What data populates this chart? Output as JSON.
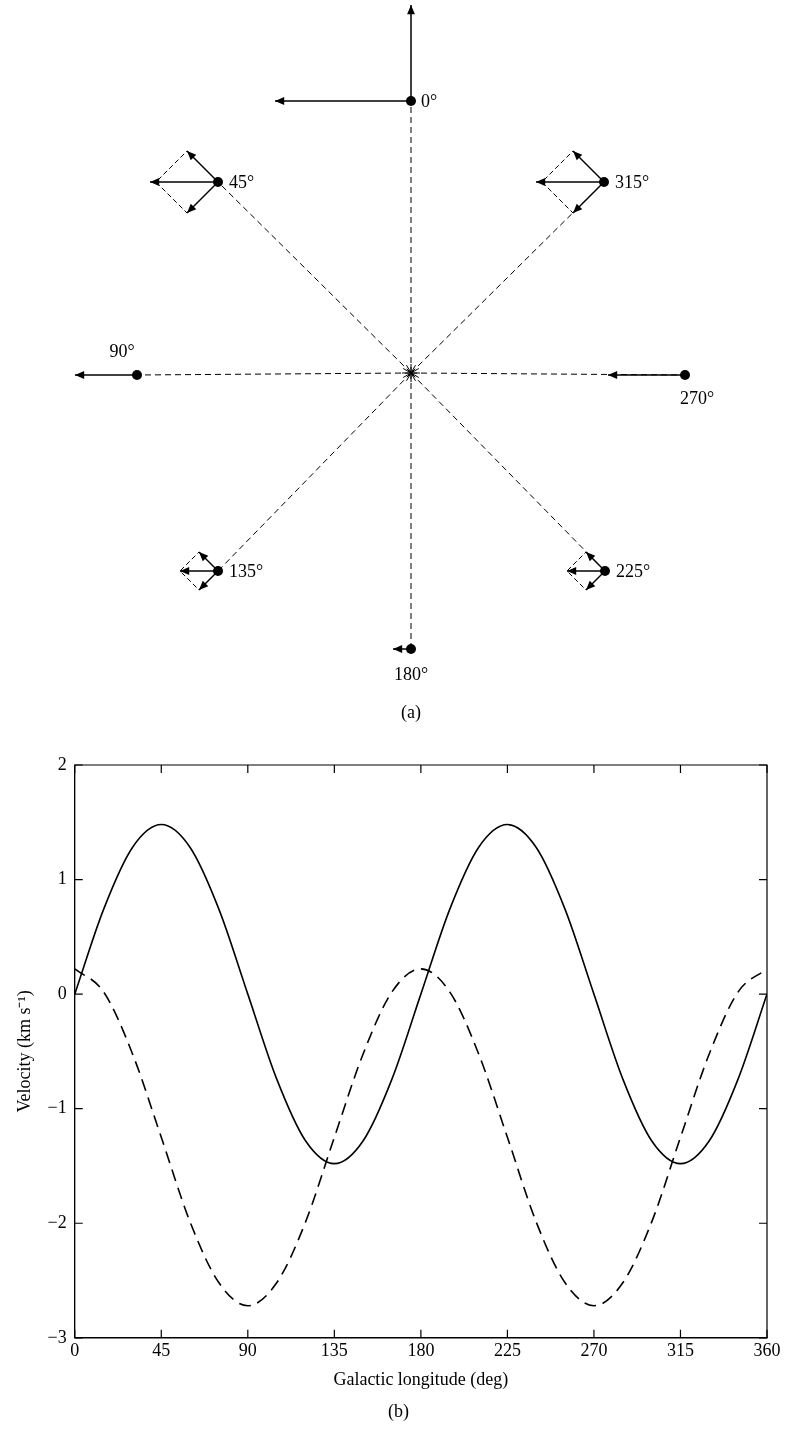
{
  "chart_data": [
    {
      "type": "other",
      "annotations": [
        "0°",
        "45°",
        "315°",
        "90°",
        "270°",
        "135°",
        "225°",
        "180°",
        "(a)"
      ]
    },
    {
      "type": "line",
      "xlabel": "Galactic longitude (deg)",
      "ylabel": "Velocity (km s⁻¹)",
      "annotations": [
        "(b)"
      ],
      "x": [
        0,
        15,
        30,
        45,
        60,
        75,
        90,
        105,
        120,
        135,
        150,
        165,
        180,
        195,
        210,
        225,
        240,
        255,
        270,
        285,
        300,
        315,
        330,
        345,
        360
      ],
      "series": [
        {
          "color": "#000000",
          "line_style": "solid",
          "values": [
            0,
            0.74,
            1.28,
            1.48,
            1.28,
            0.74,
            0,
            -0.74,
            -1.28,
            -1.48,
            -1.28,
            -0.74,
            0,
            0.74,
            1.28,
            1.48,
            1.28,
            0.74,
            0,
            -0.74,
            -1.28,
            -1.48,
            -1.28,
            -0.74,
            0
          ]
        },
        {
          "color": "#000000",
          "line_style": "dashed",
          "values": [
            0.22,
            0.02,
            -0.52,
            -1.25,
            -1.99,
            -2.52,
            -2.72,
            -2.52,
            -1.99,
            -1.25,
            -0.52,
            0.02,
            0.22,
            0.02,
            -0.52,
            -1.25,
            -1.99,
            -2.52,
            -2.72,
            -2.52,
            -1.99,
            -1.25,
            -0.52,
            0.02,
            0.22
          ]
        }
      ],
      "xlim": [
        0,
        360
      ],
      "xticks": [
        0,
        45,
        90,
        135,
        180,
        225,
        270,
        315,
        360
      ],
      "ylim": [
        -3,
        2
      ],
      "yticks": [
        {
          "value": -3,
          "label": "−3"
        },
        {
          "value": -2,
          "label": "−2"
        },
        {
          "value": -1,
          "label": "−1"
        },
        0,
        1,
        2
      ],
      "legend": false,
      "marker": "none"
    }
  ]
}
